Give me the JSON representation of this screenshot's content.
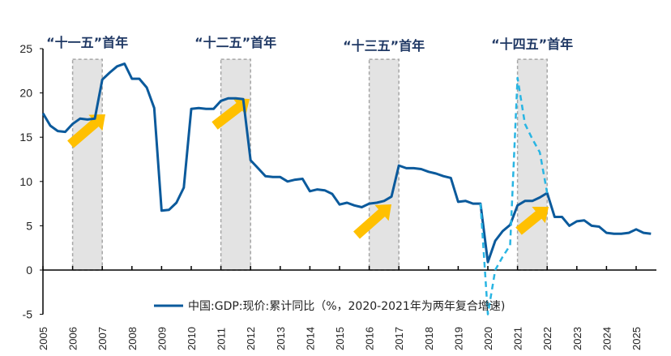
{
  "chart_data": {
    "type": "line",
    "title": "",
    "xlabel": "",
    "ylabel": "",
    "ylim": [
      -5,
      25
    ],
    "yticks": [
      -5,
      0,
      5,
      10,
      15,
      20,
      25
    ],
    "xticks": [
      "2005",
      "2006",
      "2007",
      "2008",
      "2009",
      "2010",
      "2011",
      "2012",
      "2013",
      "2014",
      "2015",
      "2016",
      "2017",
      "2018",
      "2019",
      "2020",
      "2021",
      "2022",
      "2023",
      "2024",
      "2025"
    ],
    "grid": false,
    "legend_position": "bottom-center",
    "highlights": [
      {
        "label": "“十一五”首年",
        "start": 2006,
        "end": 2007
      },
      {
        "label": "“十二五”首年",
        "start": 2011,
        "end": 2012
      },
      {
        "label": "“十三五”首年",
        "start": 2016,
        "end": 2017
      },
      {
        "label": "“十四五”首年",
        "start": 2021,
        "end": 2022
      }
    ],
    "series": [
      {
        "name": "中国:GDP:现价:累计同比（%，2020-2021年为两年复合增速)",
        "style": "solid",
        "color": "#0B5A9C",
        "x": [
          "2005Q1",
          "2005Q2",
          "2005Q3",
          "2005Q4",
          "2006Q1",
          "2006Q2",
          "2006Q3",
          "2006Q4",
          "2007Q1",
          "2007Q2",
          "2007Q3",
          "2007Q4",
          "2008Q1",
          "2008Q2",
          "2008Q3",
          "2008Q4",
          "2009Q1",
          "2009Q2",
          "2009Q3",
          "2009Q4",
          "2010Q1",
          "2010Q2",
          "2010Q3",
          "2010Q4",
          "2011Q1",
          "2011Q2",
          "2011Q3",
          "2011Q4",
          "2012Q1",
          "2012Q2",
          "2012Q3",
          "2012Q4",
          "2013Q1",
          "2013Q2",
          "2013Q3",
          "2013Q4",
          "2014Q1",
          "2014Q2",
          "2014Q3",
          "2014Q4",
          "2015Q1",
          "2015Q2",
          "2015Q3",
          "2015Q4",
          "2016Q1",
          "2016Q2",
          "2016Q3",
          "2016Q4",
          "2017Q1",
          "2017Q2",
          "2017Q3",
          "2017Q4",
          "2018Q1",
          "2018Q2",
          "2018Q3",
          "2018Q4",
          "2019Q1",
          "2019Q2",
          "2019Q3",
          "2019Q4",
          "2020Q1",
          "2020Q2",
          "2020Q3",
          "2020Q4",
          "2021Q1",
          "2021Q2",
          "2021Q3",
          "2021Q4",
          "2022Q1",
          "2022Q2",
          "2022Q3",
          "2022Q4",
          "2023Q1",
          "2023Q2",
          "2023Q3",
          "2023Q4",
          "2024Q1",
          "2024Q2",
          "2024Q3",
          "2024Q4",
          "2025Q1",
          "2025Q2",
          "2025Q3"
        ],
        "values": [
          17.7,
          16.3,
          15.7,
          15.6,
          16.5,
          17.1,
          17.0,
          17.1,
          21.5,
          22.3,
          23.0,
          23.3,
          21.6,
          21.6,
          20.6,
          18.3,
          6.7,
          6.8,
          7.6,
          9.3,
          18.2,
          18.3,
          18.2,
          18.2,
          19.1,
          19.4,
          19.4,
          19.3,
          12.4,
          11.5,
          10.6,
          10.5,
          10.5,
          10.0,
          10.2,
          10.3,
          8.9,
          9.1,
          9.0,
          8.6,
          7.4,
          7.6,
          7.3,
          7.1,
          7.5,
          7.6,
          7.8,
          8.3,
          11.8,
          11.5,
          11.5,
          11.4,
          11.1,
          10.9,
          10.6,
          10.4,
          7.7,
          7.8,
          7.5,
          7.5,
          0.9,
          3.3,
          4.4,
          5.1,
          7.3,
          7.8,
          7.8,
          8.2,
          8.7,
          6.0,
          6.0,
          5.0,
          5.5,
          5.6,
          5.0,
          4.9,
          4.2,
          4.1,
          4.1,
          4.2,
          4.6,
          4.2,
          4.1
        ]
      },
      {
        "style": "dashed",
        "color": "#29B5E3",
        "x": [
          "2019Q4",
          "2020Q1",
          "2020Q2",
          "2020Q3",
          "2020Q4",
          "2021Q1",
          "2021Q2",
          "2021Q3",
          "2021Q4",
          "2022Q1"
        ],
        "values": [
          7.5,
          -5.0,
          0.0,
          1.5,
          2.8,
          21.7,
          16.5,
          14.8,
          13.3,
          8.7
        ]
      }
    ],
    "colors": {
      "highlight_fill": "#E3E3E3",
      "highlight_border": "#A6A6A6",
      "arrow": "#FFC000",
      "label": "#1F3864"
    }
  }
}
